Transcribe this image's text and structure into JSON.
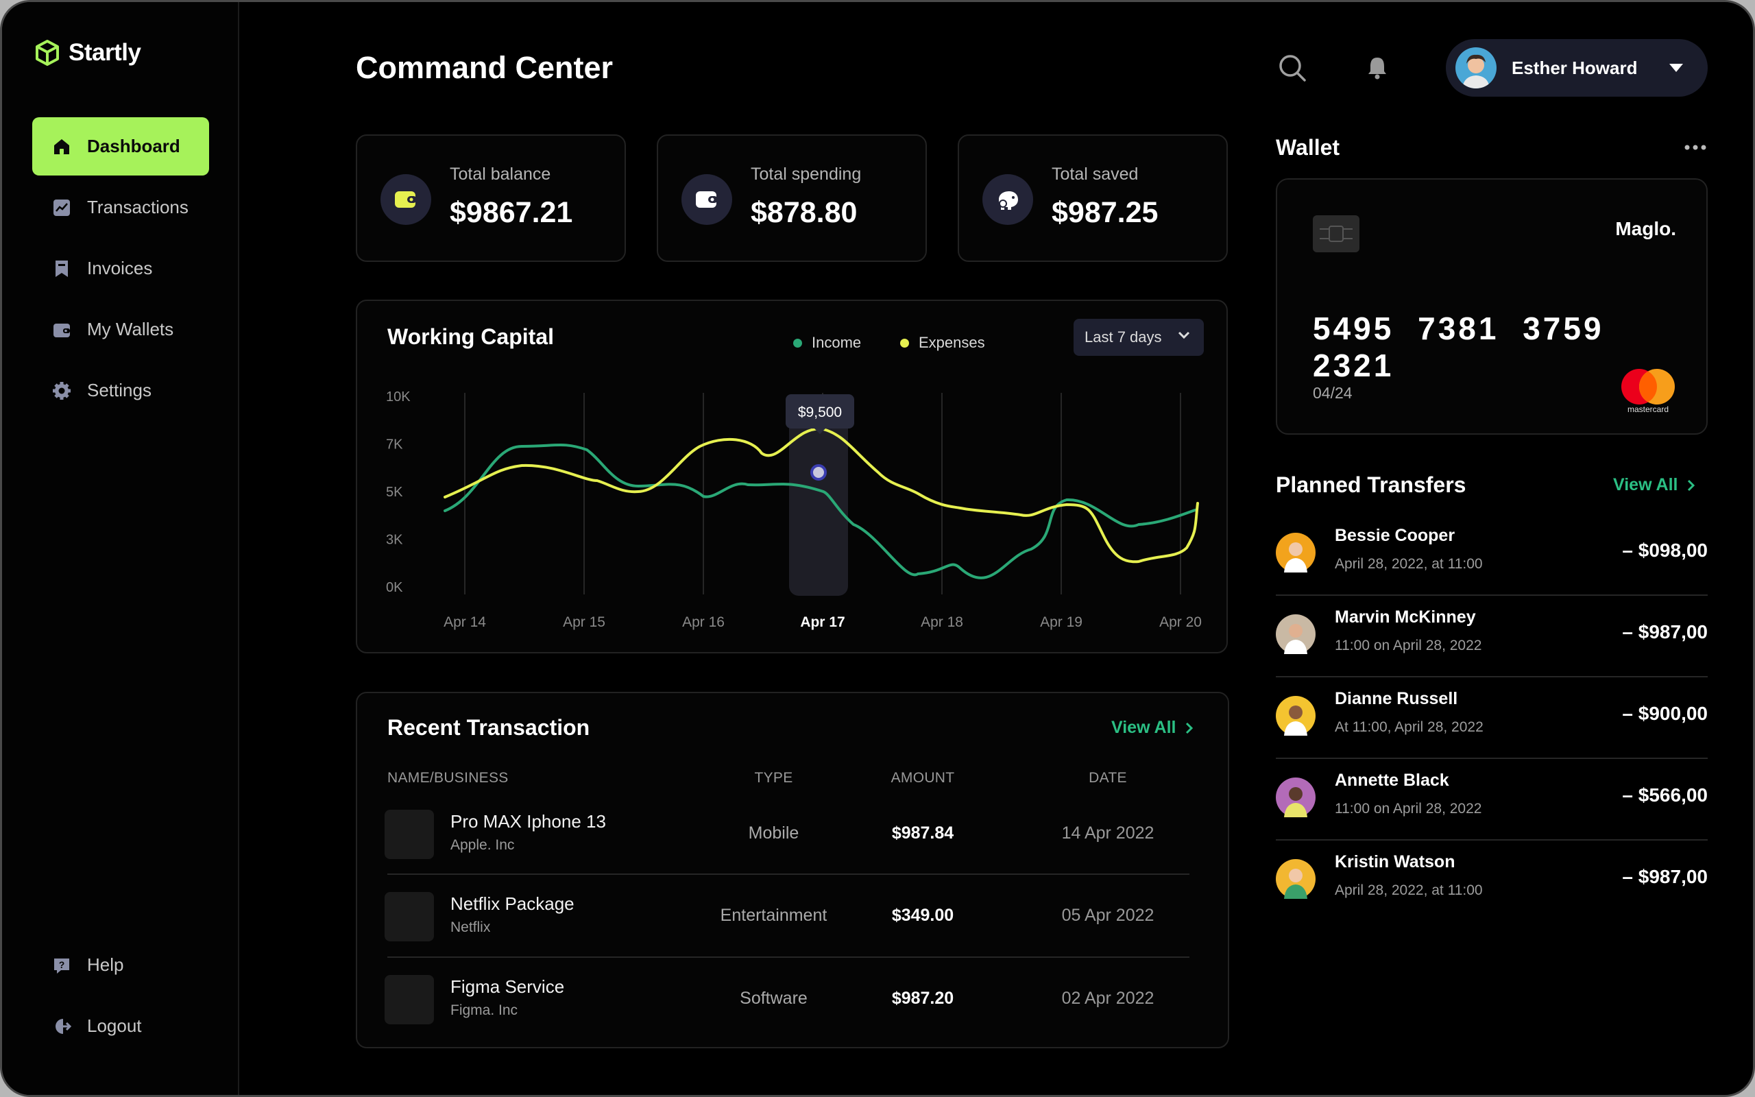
{
  "brand": {
    "name": "Startly"
  },
  "nav": {
    "items": [
      {
        "label": "Dashboard",
        "icon": "home-icon"
      },
      {
        "label": "Transactions",
        "icon": "chart-icon"
      },
      {
        "label": "Invoices",
        "icon": "invoice-icon"
      },
      {
        "label": "My Wallets",
        "icon": "wallet-icon"
      },
      {
        "label": "Settings",
        "icon": "gear-icon"
      }
    ],
    "help": "Help",
    "logout": "Logout"
  },
  "header": {
    "title": "Command Center",
    "user_name": "Esther Howard"
  },
  "stats": [
    {
      "label": "Total balance",
      "value": "$9867.21"
    },
    {
      "label": "Total spending",
      "value": "$878.80"
    },
    {
      "label": "Total saved",
      "value": "$987.25"
    }
  ],
  "capital": {
    "title": "Working Capital",
    "range": "Last 7 days",
    "tooltip": "$9,500"
  },
  "chart_data": {
    "type": "line",
    "x": [
      "Apr 14",
      "Apr 15",
      "Apr 16",
      "Apr 17",
      "Apr 18",
      "Apr 19",
      "Apr 20"
    ],
    "y_ticks": [
      "10K",
      "7K",
      "5K",
      "3K",
      "0K"
    ],
    "highlight_category": "Apr 17",
    "series": [
      {
        "name": "Income",
        "color": "#2aa876"
      },
      {
        "name": "Expenses",
        "color": "#e6f050"
      }
    ]
  },
  "transactions": {
    "title": "Recent Transaction",
    "view_all": "View All",
    "columns": [
      "NAME/BUSINESS",
      "TYPE",
      "AMOUNT",
      "DATE"
    ],
    "rows": [
      {
        "name": "Pro MAX Iphone 13",
        "business": "Apple. Inc",
        "type": "Mobile",
        "amount": "$987.84",
        "date": "14 Apr 2022"
      },
      {
        "name": "Netflix Package",
        "business": "Netflix",
        "type": "Entertainment",
        "amount": "$349.00",
        "date": "05 Apr 2022"
      },
      {
        "name": "Figma Service",
        "business": "Figma. Inc",
        "type": "Software",
        "amount": "$987.20",
        "date": "02 Apr 2022"
      }
    ]
  },
  "wallet": {
    "title": "Wallet",
    "brand": "Maglo.",
    "number": "5495 7381 3759 2321",
    "expiry": "04/24",
    "network": "mastercard"
  },
  "transfers": {
    "title": "Planned Transfers",
    "view_all": "View All",
    "items": [
      {
        "name": "Bessie Cooper",
        "time": "April 28, 2022, at 11:00",
        "amount": "– $098,00",
        "avatar_color": "#f2a31c"
      },
      {
        "name": "Marvin McKinney",
        "time": "11:00 on April 28, 2022",
        "amount": "– $987,00",
        "avatar_color": "#c9b9a4"
      },
      {
        "name": "Dianne Russell",
        "time": "At 11:00, April 28, 2022",
        "amount": "– $900,00",
        "avatar_color": "#f4c430"
      },
      {
        "name": "Annette Black",
        "time": "11:00 on April 28, 2022",
        "amount": "– $566,00",
        "avatar_color": "#b36bb8"
      },
      {
        "name": "Kristin Watson",
        "time": "April 28, 2022, at 11:00",
        "amount": "– $987,00",
        "avatar_color": "#f2b731"
      }
    ]
  }
}
